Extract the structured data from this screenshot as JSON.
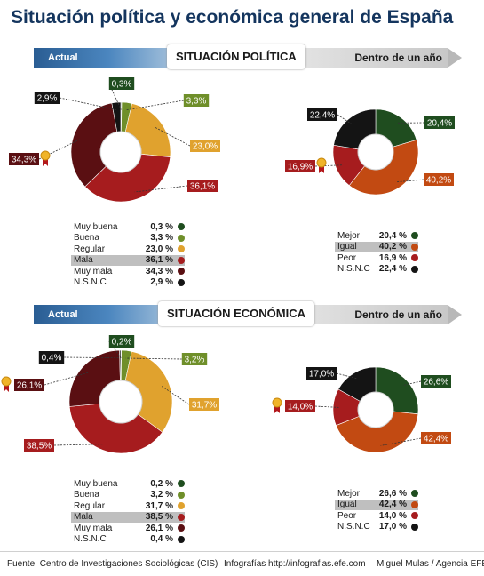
{
  "title": "Situación política y económica general de España",
  "sections": [
    {
      "left_label": "Actual",
      "center_label": "SITUACIÓN POLÍTICA",
      "right_label": "Dentro de un año"
    },
    {
      "left_label": "Actual",
      "center_label": "SITUACIÓN ECONÓMICA",
      "right_label": "Dentro de un año"
    }
  ],
  "chart_data": [
    {
      "type": "pie",
      "title": "SITUACIÓN POLÍTICA — Actual",
      "categories": [
        "Muy buena",
        "Buena",
        "Regular",
        "Mala",
        "Muy mala",
        "N.S.N.C"
      ],
      "values": [
        0.3,
        3.3,
        23.0,
        36.1,
        34.3,
        2.9
      ],
      "slice_labels": [
        "0,3%",
        "3,3%",
        "23,0%",
        "36,1%",
        "34,3%",
        "2,9%"
      ],
      "legend_values": [
        "0,3 %",
        "3,3 %",
        "23,0 %",
        "36,1 %",
        "34,3 %",
        "2,9 %"
      ],
      "colors": [
        "#1f4d1f",
        "#6f8f2a",
        "#e0a22e",
        "#a61c1e",
        "#5a0f12",
        "#141414"
      ],
      "highlight": "Mala"
    },
    {
      "type": "pie",
      "title": "SITUACIÓN POLÍTICA — Dentro de un año",
      "categories": [
        "Mejor",
        "Igual",
        "Peor",
        "N.S.N.C"
      ],
      "values": [
        20.4,
        40.2,
        16.9,
        22.4
      ],
      "slice_labels": [
        "20,4%",
        "40,2%",
        "16,9%",
        "22,4%"
      ],
      "legend_values": [
        "20,4 %",
        "40,2 %",
        "16,9 %",
        "22,4 %"
      ],
      "colors": [
        "#1f4d1f",
        "#c24a12",
        "#a61c1e",
        "#141414"
      ],
      "highlight": "Igual"
    },
    {
      "type": "pie",
      "title": "SITUACIÓN ECONÓMICA — Actual",
      "categories": [
        "Muy buena",
        "Buena",
        "Regular",
        "Mala",
        "Muy mala",
        "N.S.N.C"
      ],
      "values": [
        0.2,
        3.2,
        31.7,
        38.5,
        26.1,
        0.4
      ],
      "slice_labels": [
        "0,2%",
        "3,2%",
        "31,7%",
        "38,5%",
        "26,1%",
        "0,4%"
      ],
      "legend_values": [
        "0,2 %",
        "3,2 %",
        "31,7 %",
        "38,5 %",
        "26,1 %",
        "0,4 %"
      ],
      "colors": [
        "#1f4d1f",
        "#6f8f2a",
        "#e0a22e",
        "#a61c1e",
        "#5a0f12",
        "#141414"
      ],
      "highlight": "Mala"
    },
    {
      "type": "pie",
      "title": "SITUACIÓN ECONÓMICA — Dentro de un año",
      "categories": [
        "Mejor",
        "Igual",
        "Peor",
        "N.S.N.C"
      ],
      "values": [
        26.6,
        42.4,
        14.0,
        17.0
      ],
      "slice_labels": [
        "26,6%",
        "42,4%",
        "14,0%",
        "17,0%"
      ],
      "legend_values": [
        "26,6 %",
        "42,4 %",
        "14,0 %",
        "17,0 %"
      ],
      "colors": [
        "#1f4d1f",
        "#c24a12",
        "#a61c1e",
        "#141414"
      ],
      "highlight": "Igual"
    }
  ],
  "footer": {
    "source": "Fuente: Centro de Investigaciones Sociológicas (CIS)",
    "site": "Infografías http://infografias.efe.com",
    "credit": "Miguel Mulas / Agencia EFE"
  }
}
